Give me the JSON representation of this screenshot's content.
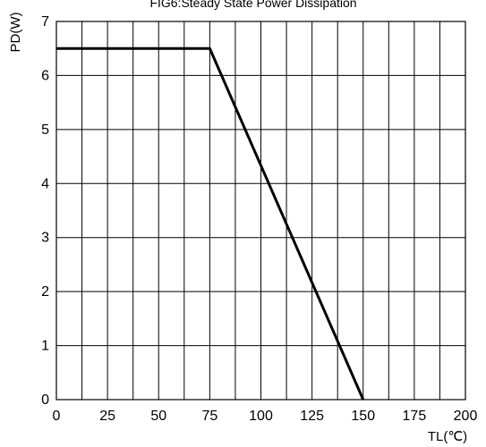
{
  "chart_data": {
    "type": "line",
    "title": "FIG6:Steady State Power Dissipation",
    "xlabel": "TL(℃)",
    "ylabel": "PD(W)",
    "xlim": [
      0,
      200
    ],
    "ylim": [
      0,
      7
    ],
    "xticks": [
      0,
      25,
      50,
      75,
      100,
      125,
      150,
      175,
      200
    ],
    "yticks": [
      0,
      1,
      2,
      3,
      4,
      5,
      6,
      7
    ],
    "x_minor_step": 12.5,
    "grid": true,
    "series": [
      {
        "x": [
          0,
          75,
          150
        ],
        "y": [
          6.5,
          6.5,
          0
        ]
      }
    ]
  }
}
